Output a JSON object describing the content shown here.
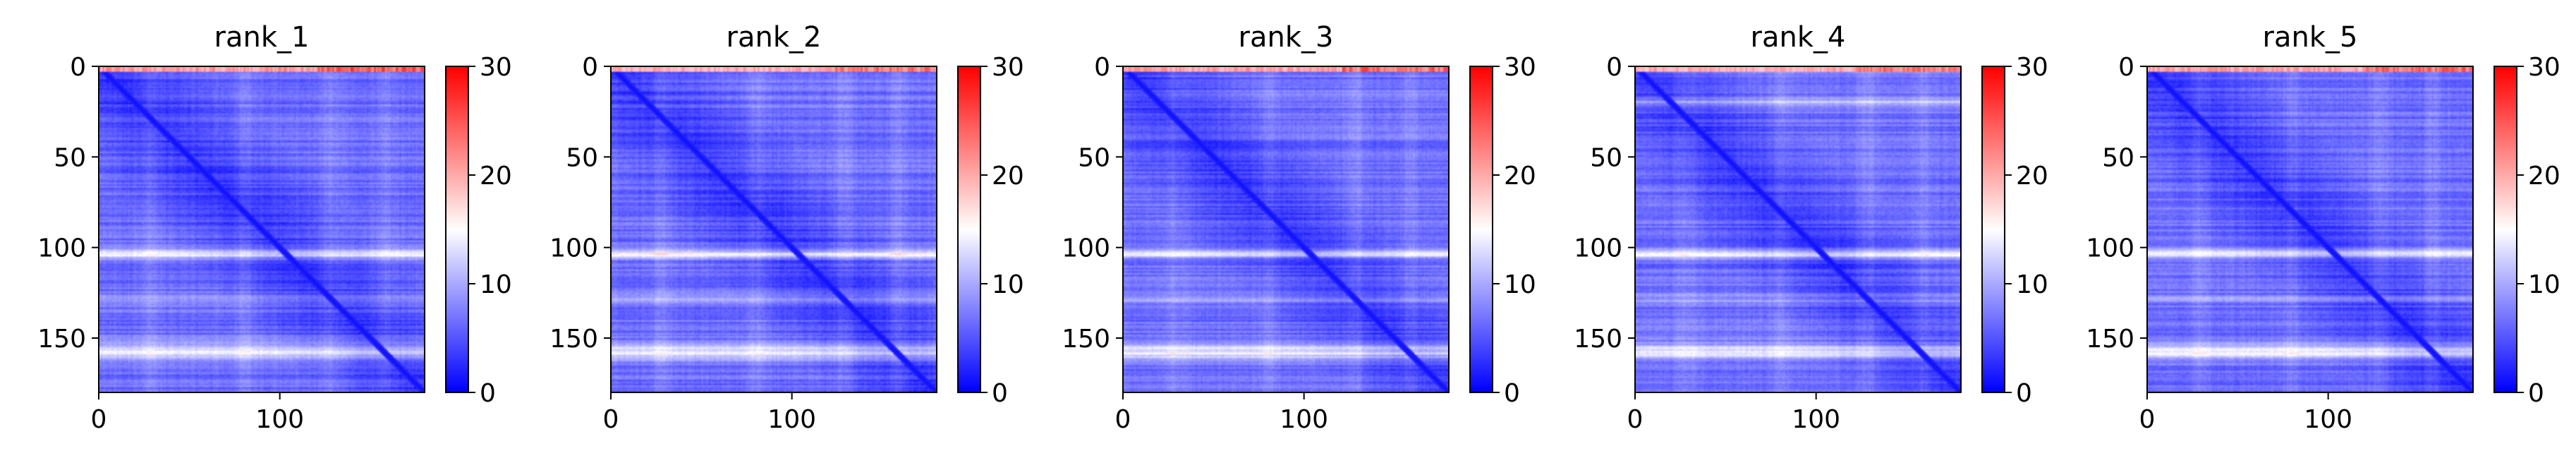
{
  "chart_data": [
    {
      "type": "heatmap",
      "title": "rank_1",
      "x_ticks": [
        0,
        100
      ],
      "y_ticks": [
        0,
        50,
        100,
        150
      ],
      "xlim": [
        0,
        180
      ],
      "ylim": [
        180,
        0
      ],
      "colorbar": {
        "ticks": [
          0,
          10,
          20,
          30
        ],
        "range": [
          0,
          30
        ],
        "colormap": "bwr"
      },
      "features": {
        "bright_rows": [
          103,
          157,
          128
        ],
        "top_band_max": 28,
        "row4_band": false
      }
    },
    {
      "type": "heatmap",
      "title": "rank_2",
      "x_ticks": [
        0,
        100
      ],
      "y_ticks": [
        0,
        50,
        100,
        150
      ],
      "xlim": [
        0,
        180
      ],
      "ylim": [
        180,
        0
      ],
      "colorbar": {
        "ticks": [
          0,
          10,
          20,
          30
        ],
        "range": [
          0,
          30
        ],
        "colormap": "bwr"
      },
      "features": {
        "bright_rows": [
          103,
          157,
          128
        ],
        "top_band_max": 26,
        "row4_band": false
      }
    },
    {
      "type": "heatmap",
      "title": "rank_3",
      "x_ticks": [
        0,
        100
      ],
      "y_ticks": [
        0,
        50,
        100,
        150
      ],
      "xlim": [
        0,
        180
      ],
      "ylim": [
        180,
        0
      ],
      "colorbar": {
        "ticks": [
          0,
          10,
          20,
          30
        ],
        "range": [
          0,
          30
        ],
        "colormap": "bwr"
      },
      "features": {
        "bright_rows": [
          103,
          157,
          128
        ],
        "top_band_max": 27,
        "row4_band": false
      }
    },
    {
      "type": "heatmap",
      "title": "rank_4",
      "x_ticks": [
        0,
        100
      ],
      "y_ticks": [
        0,
        50,
        100,
        150
      ],
      "xlim": [
        0,
        180
      ],
      "ylim": [
        180,
        0
      ],
      "colorbar": {
        "ticks": [
          0,
          10,
          20,
          30
        ],
        "range": [
          0,
          30
        ],
        "colormap": "bwr"
      },
      "features": {
        "bright_rows": [
          103,
          157,
          128
        ],
        "top_band_max": 26,
        "row4_band": true
      }
    },
    {
      "type": "heatmap",
      "title": "rank_5",
      "x_ticks": [
        0,
        100
      ],
      "y_ticks": [
        0,
        50,
        100,
        150
      ],
      "xlim": [
        0,
        180
      ],
      "ylim": [
        180,
        0
      ],
      "colorbar": {
        "ticks": [
          0,
          10,
          20,
          30
        ],
        "range": [
          0,
          30
        ],
        "colormap": "bwr"
      },
      "features": {
        "bright_rows": [
          103,
          157,
          128
        ],
        "top_band_max": 27,
        "row4_band": false
      }
    }
  ],
  "colors": {
    "low": "#0000ff",
    "mid": "#ffffff",
    "high": "#ff0000"
  }
}
